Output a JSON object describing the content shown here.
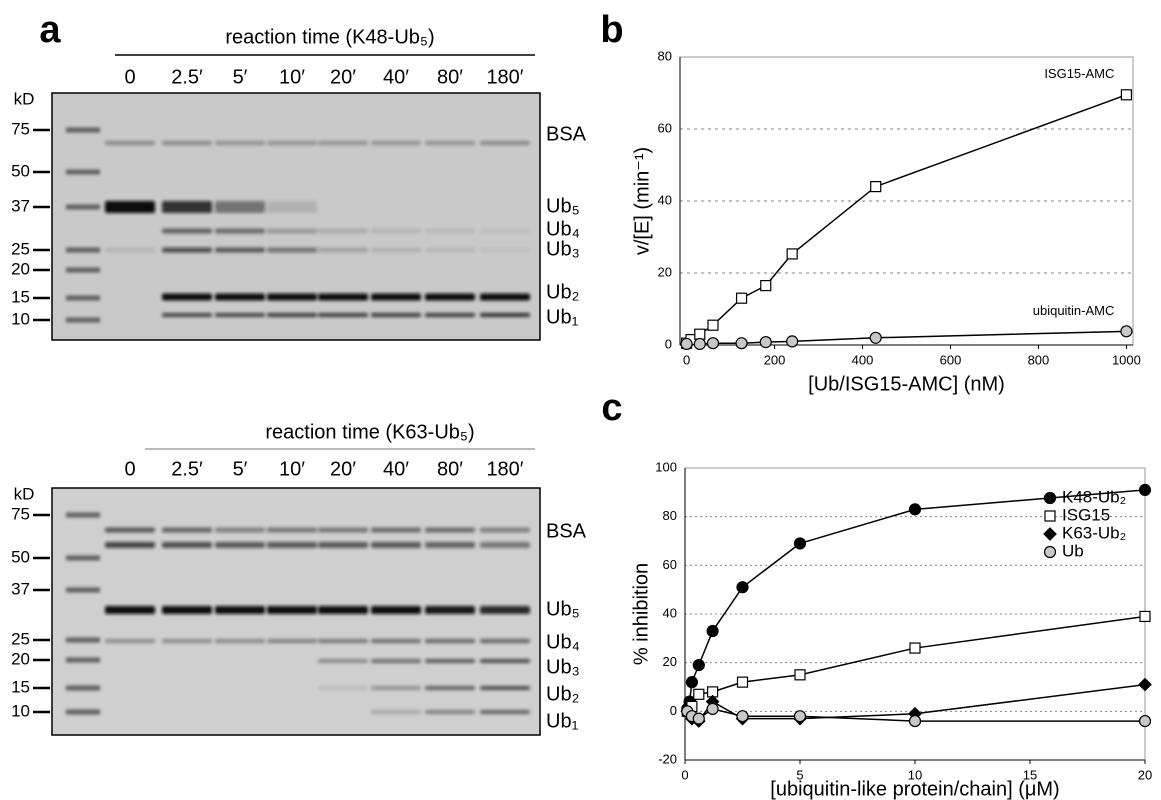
{
  "panel_labels": [
    "a",
    "b",
    "c"
  ],
  "gels": [
    {
      "title": "reaction time (K48-Ub₅)",
      "lanes": [
        "0",
        "2.5′",
        "5′",
        "10′",
        "20′",
        "40′",
        "80′",
        "180′"
      ],
      "unit": "kD",
      "markers": [
        "75",
        "50",
        "37",
        "25",
        "20",
        "15",
        "10"
      ],
      "bands": [
        "BSA",
        "Ub₅",
        "Ub₄",
        "Ub₃",
        "Ub₂",
        "Ub₁"
      ]
    },
    {
      "title": "reaction time (K63-Ub₅)",
      "lanes": [
        "0",
        "2.5′",
        "5′",
        "10′",
        "20′",
        "40′",
        "80′",
        "180′"
      ],
      "unit": "kD",
      "markers": [
        "75",
        "50",
        "37",
        "25",
        "20",
        "15",
        "10"
      ],
      "bands": [
        "BSA",
        "Ub₅",
        "Ub₄",
        "Ub₃",
        "Ub₂",
        "Ub₁"
      ]
    }
  ],
  "chart_data": [
    {
      "type": "line",
      "x_label": "[Ub/ISG15-AMC] (nM)",
      "y_label": "v/[E] (min⁻¹)",
      "xlim": [
        -15,
        1015
      ],
      "xticks": [
        0,
        200,
        400,
        600,
        800,
        1000
      ],
      "ylim": [
        0,
        80
      ],
      "yticks": [
        0,
        20,
        40,
        60,
        80
      ],
      "grid": true,
      "legend": "inline",
      "series": [
        {
          "name": "ISG15-AMC",
          "color": "#ffffff",
          "marker": "square",
          "x": [
            0,
            10,
            30,
            60,
            125,
            180,
            240,
            430,
            1000
          ],
          "values": [
            0.5,
            1.5,
            3,
            5.5,
            13,
            16.5,
            25.3,
            44,
            69.5
          ]
        },
        {
          "name": "ubiquitin-AMC",
          "color": "#c8c8c8",
          "marker": "circle",
          "x": [
            0,
            30,
            60,
            125,
            180,
            240,
            430,
            1000
          ],
          "values": [
            0.3,
            0.3,
            0.5,
            0.5,
            0.8,
            1,
            2,
            3.8
          ]
        }
      ]
    },
    {
      "type": "line",
      "x_label": "[ubiquitin-like protein/chain] (μM)",
      "y_label": "% inhibition",
      "xlim": [
        0,
        20
      ],
      "xticks": [
        0,
        5,
        10,
        15,
        20
      ],
      "ylim": [
        -20,
        100
      ],
      "yticks": [
        -20,
        0,
        20,
        40,
        60,
        80,
        100
      ],
      "grid": true,
      "legend": "top-right",
      "series": [
        {
          "name": "K48-Ub₂",
          "color": "#000000",
          "marker": "circle",
          "x": [
            0.1,
            0.2,
            0.3,
            0.6,
            1.2,
            2.5,
            5,
            10,
            20
          ],
          "values": [
            1,
            4,
            12,
            19,
            33,
            51,
            69,
            83,
            91
          ]
        },
        {
          "name": "ISG15",
          "color": "#ffffff",
          "marker": "square",
          "x": [
            0.1,
            0.3,
            0.6,
            1.2,
            2.5,
            5,
            10,
            20
          ],
          "values": [
            0,
            2,
            7,
            8,
            12,
            15,
            26,
            39
          ]
        },
        {
          "name": "K63-Ub₂",
          "color": "#000000",
          "marker": "diamond",
          "x": [
            0.1,
            0.3,
            0.6,
            1.2,
            2.5,
            5,
            10,
            20
          ],
          "values": [
            0,
            -3,
            -4,
            4,
            -3,
            -3,
            -1,
            11
          ]
        },
        {
          "name": "Ub",
          "color": "#c8c8c8",
          "marker": "circle",
          "x": [
            0.1,
            0.3,
            0.6,
            1.2,
            2.5,
            5,
            10,
            20
          ],
          "values": [
            0,
            -2,
            -3,
            1,
            -2,
            -2,
            -4,
            -4
          ]
        }
      ]
    }
  ]
}
